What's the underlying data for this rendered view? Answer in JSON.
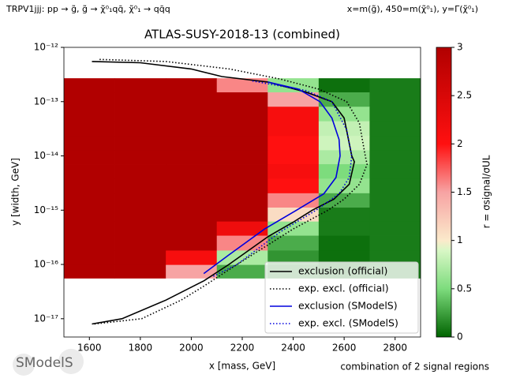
{
  "chart_data": {
    "type": "heatmap",
    "title": "ATLAS-SUSY-2018-13 (combined)",
    "subtitle_left": "TRPV1jjj: pp → g̃, g̃ → χ̃⁰₁qq̄, χ̃⁰₁ → qq̄q",
    "subtitle_right": "x=m(g̃), 450=m(χ̃⁰₁), y=Γ(χ̃⁰₁)",
    "x_label": "x [mass, GeV]",
    "y_label": "y [width, GeV]",
    "colorbar_label": "r = σsignal/σUL",
    "footer": "combination of 2 signal regions",
    "logo": "SModelS",
    "xlim": [
      1500,
      2900
    ],
    "xticks": [
      1800,
      2000,
      2200,
      2400,
      2600,
      2800,
      1600
    ],
    "ylim": [
      4.6e-18,
      1e-12
    ],
    "y_log": true,
    "yticks": [
      {
        "value": 1e-12,
        "label": "10⁻¹²"
      },
      {
        "value": 1e-13,
        "label": "10⁻¹³"
      },
      {
        "value": 1e-14,
        "label": "10⁻¹⁴"
      },
      {
        "value": 1e-15,
        "label": "10⁻¹⁵"
      },
      {
        "value": 1e-16,
        "label": "10⁻¹⁶"
      },
      {
        "value": 1e-17,
        "label": "10⁻¹⁷"
      }
    ],
    "x": [
      1600,
      1800,
      2000,
      2200,
      2400,
      2600,
      2800
    ],
    "y": [
      2e-13,
      1.1e-13,
      5.9e-14,
      3.2e-14,
      1.7e-14,
      9.5e-15,
      5.2e-15,
      2.8e-15,
      1.5e-15,
      8.3e-16,
      4.6e-16,
      2.5e-16,
      1.3e-16,
      7.4e-17
    ],
    "z": [
      [
        3,
        3,
        3,
        1.6,
        0.6,
        0.05,
        0.1
      ],
      [
        3,
        3,
        3,
        3,
        1.5,
        0.3,
        0.1
      ],
      [
        3,
        3,
        3,
        3,
        2.1,
        0.6,
        0.1
      ],
      [
        3,
        3,
        3,
        3,
        2.1,
        0.8,
        0.1
      ],
      [
        3,
        3,
        3,
        3,
        2.0,
        0.85,
        0.1
      ],
      [
        3,
        3,
        3,
        3,
        2.0,
        0.7,
        0.1
      ],
      [
        3,
        3,
        3,
        3,
        2.1,
        0.5,
        0.1
      ],
      [
        3,
        3,
        3,
        3,
        2.0,
        0.6,
        0.1
      ],
      [
        3,
        3,
        3,
        3,
        1.6,
        0.3,
        0.1
      ],
      [
        3,
        3,
        3,
        3,
        1.1,
        0.1,
        0.1
      ],
      [
        3,
        3,
        3,
        2.2,
        0.6,
        0.1,
        0.1
      ],
      [
        3,
        3,
        3,
        1.6,
        0.3,
        0.05,
        0.1
      ],
      [
        3,
        3,
        2.1,
        0.7,
        0.2,
        0.05,
        0.1
      ],
      [
        3,
        3,
        1.5,
        0.3,
        0.1,
        0.05,
        0.1
      ]
    ],
    "zlim": [
      0,
      3
    ],
    "zticks": [
      0,
      0.5,
      1.0,
      1.5,
      2.0,
      2.5,
      3.0
    ],
    "colormap": [
      [
        0,
        "#006400"
      ],
      [
        0.5,
        "#7ddc7d"
      ],
      [
        0.9,
        "#d9f7c6"
      ],
      [
        1,
        "#fbeacb"
      ],
      [
        1.5,
        "#f7a3a3"
      ],
      [
        2,
        "#ff1010"
      ],
      [
        3,
        "#b10000"
      ]
    ],
    "legend_loc": "lower right",
    "series": [
      {
        "name": "exclusion (official)",
        "color": "#000000",
        "linestyle": "solid",
        "x": [
          1610,
          1800,
          2000,
          2120,
          2300,
          2450,
          2552,
          2600,
          2630,
          2640,
          2620,
          2560,
          2475,
          2400,
          2303,
          2148,
          2050,
          1900,
          1728,
          1610
        ],
        "values": [
          5.5e-13,
          5.2e-13,
          4e-13,
          2.9e-13,
          2.3e-13,
          1.5e-13,
          1e-13,
          5e-14,
          1e-14,
          7.8e-15,
          3e-15,
          1.6e-15,
          1e-15,
          6e-16,
          3.3e-16,
          1e-16,
          5e-17,
          2.2e-17,
          1e-17,
          8e-18
        ]
      },
      {
        "name": "exp. excl. (official)",
        "color": "#000000",
        "linestyle": "dotted",
        "x": [
          1640,
          1900,
          2150,
          2350,
          2500,
          2610,
          2660,
          2683,
          2690,
          2660,
          2600,
          2537,
          2400,
          2180,
          2050,
          1960,
          1805,
          1620
        ],
        "values": [
          6e-13,
          5.5e-13,
          4e-13,
          2.6e-13,
          1.7e-13,
          1e-13,
          4e-14,
          1e-14,
          7e-15,
          3e-15,
          1.6e-15,
          1e-15,
          4.5e-16,
          1e-16,
          4e-17,
          2.2e-17,
          1e-17,
          8e-18
        ]
      },
      {
        "name": "exclusion (SModelS)",
        "color": "#0000dd",
        "linestyle": "solid",
        "x": [
          2300,
          2420,
          2505,
          2552,
          2580,
          2584,
          2568,
          2520,
          2413,
          2288,
          2148,
          2049
        ],
        "values": [
          2.3e-13,
          1.7e-13,
          1e-13,
          5e-14,
          2e-14,
          1e-14,
          4e-15,
          2e-15,
          1e-15,
          4.5e-16,
          1.5e-16,
          6.8e-17
        ]
      },
      {
        "name": "exp. excl. (SModelS)",
        "color": "#0000dd",
        "linestyle": "dotted",
        "x": [
          2240,
          2450,
          2552,
          2610,
          2630,
          2620,
          2580,
          2490,
          2350,
          2180,
          2085
        ],
        "values": [
          2.4e-13,
          1.6e-13,
          1e-13,
          3e-14,
          1e-14,
          4e-15,
          2e-15,
          1e-15,
          4e-16,
          1e-16,
          6e-17
        ]
      }
    ]
  }
}
